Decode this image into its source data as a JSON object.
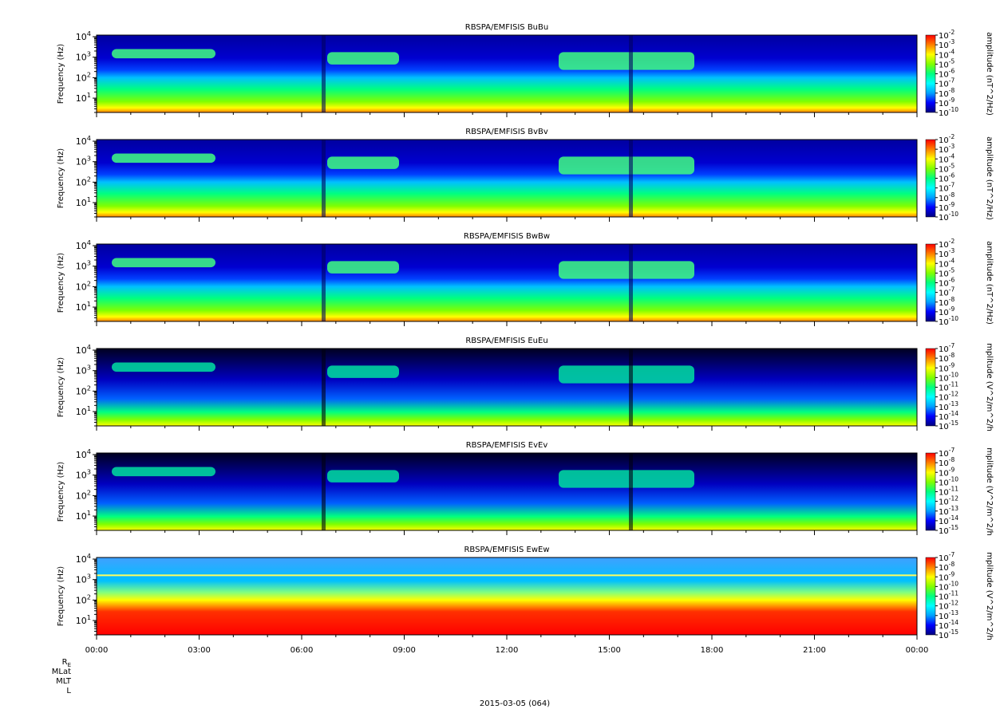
{
  "figure": {
    "date_label": "2015-03-05 (064)",
    "ephemeris_labels": [
      "R",
      "MLat",
      "MLT",
      "L"
    ],
    "ephemeris_subscript": "E",
    "x_tick_labels": [
      "00:00",
      "03:00",
      "06:00",
      "09:00",
      "12:00",
      "15:00",
      "18:00",
      "21:00",
      "00:00"
    ]
  },
  "chart_data": [
    {
      "type": "heatmap",
      "title": "RBSPA/EMFISIS  BuBu",
      "ylabel": "Frequency (Hz)",
      "y_tick_labels": [
        "10^1",
        "10^2",
        "10^3",
        "10^4"
      ],
      "yscale": "log",
      "ylim": [
        2,
        12000
      ],
      "xlim": [
        "00:00",
        "00:00"
      ],
      "colorbar_label": "amplitude (nT^2/Hz)",
      "colorbar_scale": "log",
      "colorbar_ticks": [
        "10^-2",
        "10^-3",
        "10^-4",
        "10^-5",
        "10^-6",
        "10^-7",
        "10^-8",
        "10^-9",
        "10^-10"
      ],
      "colorbar_range": [
        -10,
        -2
      ],
      "colormap": [
        "#00007f",
        "#0000ff",
        "#00a0ff",
        "#00ffff",
        "#00ff80",
        "#80ff00",
        "#ffff00",
        "#ff8000",
        "#ff0000"
      ]
    },
    {
      "type": "heatmap",
      "title": "RBSPA/EMFISIS  BvBv",
      "ylabel": "Frequency (Hz)",
      "y_tick_labels": [
        "10^1",
        "10^2",
        "10^3",
        "10^4"
      ],
      "yscale": "log",
      "ylim": [
        2,
        12000
      ],
      "xlim": [
        "00:00",
        "00:00"
      ],
      "colorbar_label": "amplitude (nT^2/Hz)",
      "colorbar_scale": "log",
      "colorbar_ticks": [
        "10^-2",
        "10^-3",
        "10^-4",
        "10^-5",
        "10^-6",
        "10^-7",
        "10^-8",
        "10^-9",
        "10^-10"
      ],
      "colorbar_range": [
        -10,
        -2
      ],
      "colormap": [
        "#00007f",
        "#0000ff",
        "#00a0ff",
        "#00ffff",
        "#00ff80",
        "#80ff00",
        "#ffff00",
        "#ff8000",
        "#ff0000"
      ]
    },
    {
      "type": "heatmap",
      "title": "RBSPA/EMFISIS  BwBw",
      "ylabel": "Frequency (Hz)",
      "y_tick_labels": [
        "10^1",
        "10^2",
        "10^3",
        "10^4"
      ],
      "yscale": "log",
      "ylim": [
        2,
        12000
      ],
      "xlim": [
        "00:00",
        "00:00"
      ],
      "colorbar_label": "amplitude (nT^2/Hz)",
      "colorbar_scale": "log",
      "colorbar_ticks": [
        "10^-2",
        "10^-3",
        "10^-4",
        "10^-5",
        "10^-6",
        "10^-7",
        "10^-8",
        "10^-9",
        "10^-10"
      ],
      "colorbar_range": [
        -10,
        -2
      ],
      "colormap": [
        "#00007f",
        "#0000ff",
        "#00a0ff",
        "#00ffff",
        "#00ff80",
        "#80ff00",
        "#ffff00",
        "#ff8000",
        "#ff0000"
      ]
    },
    {
      "type": "heatmap",
      "title": "RBSPA/EMFISIS  EuEu",
      "ylabel": "Frequency (Hz)",
      "y_tick_labels": [
        "10^1",
        "10^2",
        "10^3",
        "10^4"
      ],
      "yscale": "log",
      "ylim": [
        2,
        12000
      ],
      "xlim": [
        "00:00",
        "00:00"
      ],
      "colorbar_label": "mplitude (V^2/m^2/h",
      "colorbar_scale": "log",
      "colorbar_ticks": [
        "10^-7",
        "10^-8",
        "10^-9",
        "10^-10",
        "10^-11",
        "10^-12",
        "10^-13",
        "10^-14",
        "10^-15"
      ],
      "colorbar_range": [
        -15,
        -7
      ],
      "colormap": [
        "#00007f",
        "#0000ff",
        "#00a0ff",
        "#00ffff",
        "#00ff80",
        "#80ff00",
        "#ffff00",
        "#ff8000",
        "#ff0000"
      ]
    },
    {
      "type": "heatmap",
      "title": "RBSPA/EMFISIS  EvEv",
      "ylabel": "Frequency (Hz)",
      "y_tick_labels": [
        "10^1",
        "10^2",
        "10^3",
        "10^4"
      ],
      "yscale": "log",
      "ylim": [
        2,
        12000
      ],
      "xlim": [
        "00:00",
        "00:00"
      ],
      "colorbar_label": "mplitude (V^2/m^2/h",
      "colorbar_scale": "log",
      "colorbar_ticks": [
        "10^-7",
        "10^-8",
        "10^-9",
        "10^-10",
        "10^-11",
        "10^-12",
        "10^-13",
        "10^-14",
        "10^-15"
      ],
      "colorbar_range": [
        -15,
        -7
      ],
      "colormap": [
        "#00007f",
        "#0000ff",
        "#00a0ff",
        "#00ffff",
        "#00ff80",
        "#80ff00",
        "#ffff00",
        "#ff8000",
        "#ff0000"
      ]
    },
    {
      "type": "heatmap",
      "title": "RBSPA/EMFISIS  EwEw",
      "ylabel": "Frequency (Hz)",
      "y_tick_labels": [
        "10^1",
        "10^2",
        "10^3",
        "10^4"
      ],
      "yscale": "log",
      "ylim": [
        2,
        12000
      ],
      "xlim": [
        "00:00",
        "00:00"
      ],
      "colorbar_label": "mplitude (V^2/m^2/h",
      "colorbar_scale": "log",
      "colorbar_ticks": [
        "10^-7",
        "10^-8",
        "10^-9",
        "10^-10",
        "10^-11",
        "10^-12",
        "10^-13",
        "10^-14",
        "10^-15"
      ],
      "colorbar_range": [
        -15,
        -7
      ],
      "colormap": [
        "#00007f",
        "#0000ff",
        "#00a0ff",
        "#00ffff",
        "#00ff80",
        "#80ff00",
        "#ffff00",
        "#ff8000",
        "#ff0000"
      ]
    }
  ]
}
